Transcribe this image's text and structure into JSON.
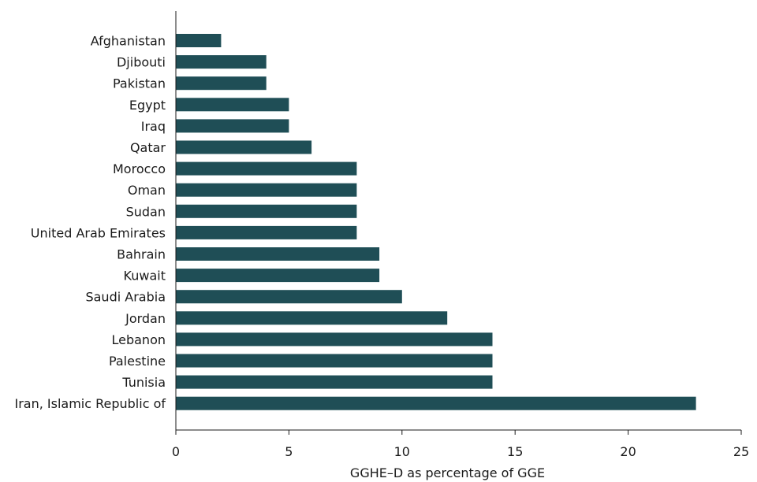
{
  "chart_data": {
    "type": "bar",
    "orientation": "horizontal",
    "title": "",
    "xlabel": "GGHE–D as percentage of GGE",
    "ylabel": "",
    "xlim": [
      0,
      25
    ],
    "xticks": [
      0,
      5,
      10,
      15,
      20,
      25
    ],
    "grid": false,
    "bar_color": "#1f4e56",
    "categories": [
      "Afghanistan",
      "Djibouti",
      "Pakistan",
      "Egypt",
      "Iraq",
      "Qatar",
      "Morocco",
      "Oman",
      "Sudan",
      "United Arab Emirates",
      "Bahrain",
      "Kuwait",
      "Saudi Arabia",
      "Jordan",
      "Lebanon",
      "Palestine",
      "Tunisia",
      "Iran, Islamic Republic of"
    ],
    "values": [
      2,
      4,
      4,
      5,
      5,
      6,
      8,
      8,
      8,
      8,
      9,
      9,
      10,
      12,
      14,
      14,
      14,
      23
    ]
  }
}
